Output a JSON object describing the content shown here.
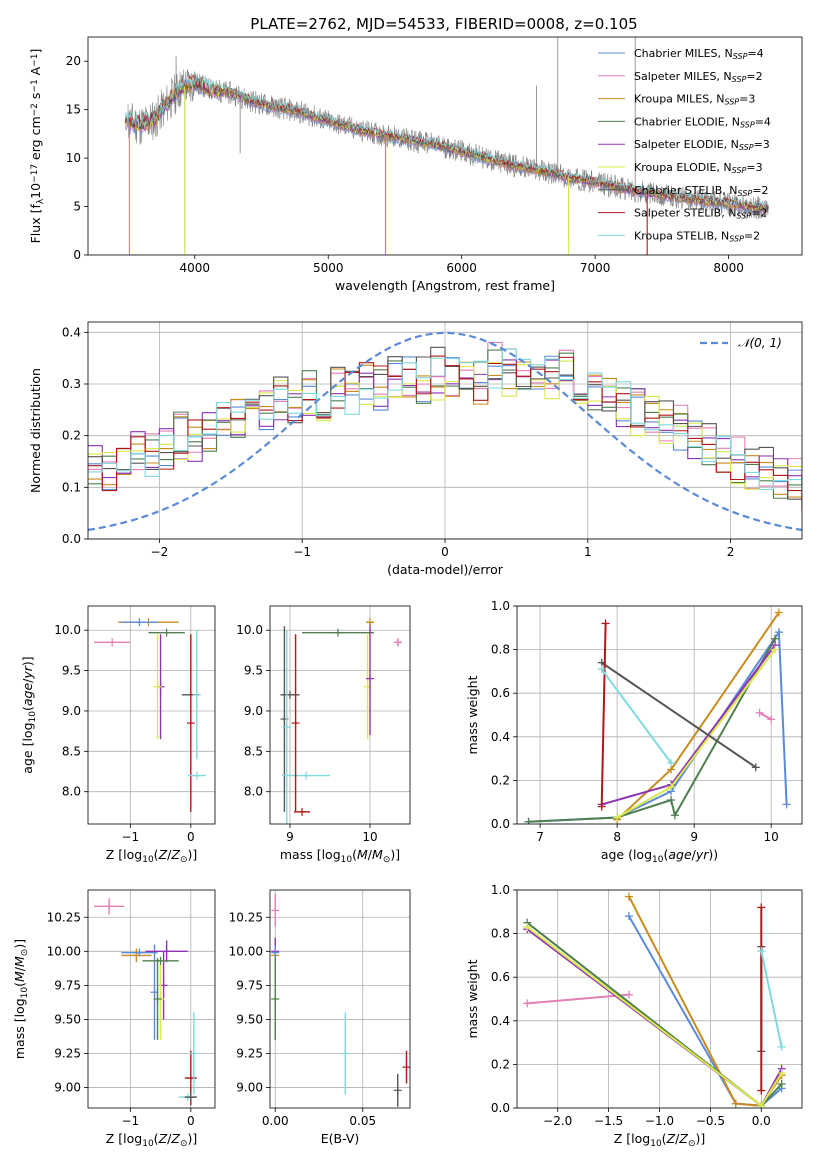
{
  "figure_title": "PLATE=2762, MJD=54533, FIBERID=0008, z=0.105",
  "colors": {
    "Chabrier MILES": "#5b8bd8",
    "Salpeter MILES": "#e57fb7",
    "Kroupa MILES": "#c98b1e",
    "Chabrier ELODIE": "#4f7f4f",
    "Salpeter ELODIE": "#8f33b5",
    "Kroupa ELODIE": "#d9e84a",
    "Chabrier STELIB": "#555555",
    "Salpeter STELIB": "#b01818",
    "Kroupa STELIB": "#7fd9de",
    "data": "#808080",
    "normal": "#5b8bd8"
  },
  "legend_entries": [
    {
      "name": "Chabrier MILES",
      "pre": "Chabrier MILES, N",
      "sub": "SSP",
      "post": "=4"
    },
    {
      "name": "Salpeter MILES",
      "pre": "Salpeter MILES, N",
      "sub": "SSP",
      "post": "=2"
    },
    {
      "name": "Kroupa MILES",
      "pre": "Kroupa MILES, N",
      "sub": "SSP",
      "post": "=3"
    },
    {
      "name": "Chabrier ELODIE",
      "pre": "Chabrier ELODIE, N",
      "sub": "SSP",
      "post": "=4"
    },
    {
      "name": "Salpeter ELODIE",
      "pre": "Salpeter ELODIE, N",
      "sub": "SSP",
      "post": "=3"
    },
    {
      "name": "Kroupa ELODIE",
      "pre": "Kroupa ELODIE, N",
      "sub": "SSP",
      "post": "=3"
    },
    {
      "name": "Chabrier STELIB",
      "pre": "Chabrier STELIB, N",
      "sub": "SSP",
      "post": "=2"
    },
    {
      "name": "Salpeter STELIB",
      "pre": "Salpeter STELIB, N",
      "sub": "SSP",
      "post": "=2"
    },
    {
      "name": "Kroupa STELIB",
      "pre": "Kroupa STELIB, N",
      "sub": "SSP",
      "post": "=2"
    }
  ],
  "chart_data": [
    {
      "id": "spectrum",
      "type": "line",
      "xlabel": "wavelength [Angstrom, rest frame]",
      "ylabel": "Flux [fλ10⁻¹⁷ erg cm⁻² s⁻¹ A⁻¹]",
      "xlim": [
        3200,
        8550
      ],
      "ylim": [
        0,
        22.5
      ],
      "xticks": [
        4000,
        5000,
        6000,
        7000,
        8000
      ],
      "yticks": [
        0,
        5,
        10,
        15,
        20
      ],
      "grid": false,
      "legend": "top-right",
      "continuum": {
        "x": [
          3500,
          3600,
          3700,
          3800,
          3900,
          4000,
          4100,
          4200,
          4300,
          4400,
          4500,
          4600,
          4700,
          4800,
          5000,
          5200,
          5400,
          5600,
          5800,
          6000,
          6200,
          6400,
          6600,
          6800,
          7000,
          7200,
          7400,
          7600,
          7800,
          8000,
          8200,
          8300
        ],
        "y": [
          13.8,
          13.4,
          14.0,
          15.8,
          17.3,
          17.8,
          17.2,
          16.9,
          16.6,
          16.0,
          15.6,
          15.3,
          15.0,
          14.7,
          13.8,
          13.0,
          12.4,
          11.9,
          11.4,
          10.7,
          9.9,
          9.2,
          8.7,
          8.0,
          7.5,
          6.9,
          6.4,
          6.0,
          5.6,
          5.3,
          4.9,
          4.8
        ]
      },
      "spikes": [
        {
          "x": 3925,
          "y": 0.2
        },
        {
          "x": 4340,
          "y": 10.5
        },
        {
          "x": 5430,
          "y": 0.1
        },
        {
          "x": 6560,
          "y": 17.5
        },
        {
          "x": 6720,
          "y": 22.5
        },
        {
          "x": 6800,
          "y": 1.5
        },
        {
          "x": 7390,
          "y": 0.0
        },
        {
          "x": 7300,
          "y": 22.5
        },
        {
          "x": 3860,
          "y": 20.5
        }
      ]
    },
    {
      "id": "residuals",
      "type": "histogram",
      "xlabel": "(data-model)/error",
      "ylabel": "Normed distribution",
      "xlim": [
        -2.5,
        2.5
      ],
      "ylim": [
        0,
        0.42
      ],
      "xticks": [
        -2,
        -1,
        0,
        1,
        2
      ],
      "yticks": [
        0.0,
        0.1,
        0.2,
        0.3,
        0.4
      ],
      "grid": true,
      "legend": "top-right",
      "bin_width": 0.1,
      "normal_label": "𝒩(0, 1)",
      "envelope": [
        0.14,
        0.13,
        0.15,
        0.17,
        0.16,
        0.18,
        0.2,
        0.19,
        0.21,
        0.22,
        0.23,
        0.24,
        0.25,
        0.27,
        0.26,
        0.28,
        0.27,
        0.29,
        0.28,
        0.3,
        0.29,
        0.3,
        0.31,
        0.3,
        0.32,
        0.31,
        0.32,
        0.31,
        0.33,
        0.32,
        0.31,
        0.32,
        0.31,
        0.32,
        0.3,
        0.29,
        0.28,
        0.26,
        0.25,
        0.24,
        0.22,
        0.21,
        0.19,
        0.18,
        0.16,
        0.15,
        0.14,
        0.13,
        0.12,
        0.11,
        0.1,
        0.09,
        0.09,
        0.08,
        0.08,
        0.07,
        0.07,
        0.06,
        0.06,
        0.05,
        0.05,
        0.04,
        0.04,
        0.04,
        0.03,
        0.03,
        0.03,
        0.03,
        0.03,
        0.02,
        0.02,
        0.02,
        0.02,
        0.02,
        0.02,
        0.02,
        0.02,
        0.02,
        0.02,
        0.02,
        0.02,
        0.02,
        0.02,
        0.02,
        0.02,
        0.02,
        0.02,
        0.02,
        0.02,
        0.02
      ],
      "series": [
        {
          "name": "Chabrier MILES",
          "scale": 1.0,
          "seed": 1
        },
        {
          "name": "Salpeter MILES",
          "scale": 1.02,
          "seed": 2
        },
        {
          "name": "Kroupa MILES",
          "scale": 0.98,
          "seed": 3
        },
        {
          "name": "Chabrier ELODIE",
          "scale": 1.01,
          "seed": 4
        },
        {
          "name": "Salpeter ELODIE",
          "scale": 0.99,
          "seed": 5
        },
        {
          "name": "Kroupa ELODIE",
          "scale": 0.97,
          "seed": 6
        },
        {
          "name": "Chabrier STELIB",
          "scale": 1.03,
          "seed": 7
        },
        {
          "name": "Salpeter STELIB",
          "scale": 1.0,
          "seed": 8
        },
        {
          "name": "Kroupa STELIB",
          "scale": 1.01,
          "seed": 9
        }
      ]
    },
    {
      "id": "age_vs_Z",
      "type": "errorbar",
      "xlabel": "Z [log10(Z/Z⊙)]",
      "ylabel": "age [log10(age/yr)]",
      "xlim": [
        -1.7,
        0.4
      ],
      "ylim": [
        7.6,
        10.3
      ],
      "xticks": [
        -1,
        0
      ],
      "yticks": [
        8.0,
        8.5,
        9.0,
        9.5,
        10.0
      ],
      "grid": true,
      "points": [
        {
          "name": "Salpeter MILES",
          "x": -1.3,
          "y": 9.85,
          "xerr": 0.3,
          "yerr": 0.0
        },
        {
          "name": "Kroupa MILES",
          "x": -0.7,
          "y": 10.1,
          "xerr": 0.5,
          "yerr": 0.0
        },
        {
          "name": "Chabrier MILES",
          "x": -0.85,
          "y": 10.1,
          "xerr": 0.3,
          "yerr": 0.0
        },
        {
          "name": "Salpeter ELODIE",
          "x": -0.5,
          "y": 9.3,
          "xerr": 0.0,
          "yerr": 0.65
        },
        {
          "name": "Kroupa ELODIE",
          "x": -0.55,
          "y": 9.3,
          "xerr": 0.0,
          "yerr": 0.65
        },
        {
          "name": "Chabrier ELODIE",
          "x": -0.4,
          "y": 9.97,
          "xerr": 0.3,
          "yerr": 0.0
        },
        {
          "name": "Chabrier STELIB",
          "x": 0.0,
          "y": 9.2,
          "xerr": 0.15,
          "yerr": 0.0
        },
        {
          "name": "Salpeter STELIB",
          "x": 0.0,
          "y": 8.85,
          "xerr": 0.0,
          "yerr": 1.1
        },
        {
          "name": "Kroupa STELIB",
          "x": 0.1,
          "y": 8.2,
          "xerr": 0.15,
          "yerr": 0.0
        },
        {
          "name": "Kroupa STELIB",
          "x": 0.1,
          "y": 9.2,
          "xerr": 0.0,
          "yerr": 0.8
        }
      ]
    },
    {
      "id": "age_vs_mass",
      "type": "errorbar",
      "xlabel": "mass [log10(M/M⊙)]",
      "ylabel": "",
      "xlim": [
        8.75,
        10.5
      ],
      "ylim": [
        7.6,
        10.3
      ],
      "xticks": [
        9,
        10
      ],
      "yticks": [
        8.0,
        8.5,
        9.0,
        9.5,
        10.0
      ],
      "grid": true,
      "points": [
        {
          "name": "Chabrier STELIB",
          "x": 9.0,
          "y": 9.2,
          "xerr": 0.12,
          "yerr": 0.0
        },
        {
          "name": "Chabrier STELIB",
          "x": 8.93,
          "y": 8.9,
          "xerr": 0.0,
          "yerr": 1.15
        },
        {
          "name": "Kroupa STELIB",
          "x": 8.96,
          "y": 8.8,
          "xerr": 0.0,
          "yerr": 1.2
        },
        {
          "name": "Kroupa STELIB",
          "x": 9.2,
          "y": 8.2,
          "xerr": 0.3,
          "yerr": 0.0
        },
        {
          "name": "Salpeter STELIB",
          "x": 9.07,
          "y": 8.85,
          "xerr": 0.0,
          "yerr": 1.1
        },
        {
          "name": "Salpeter STELIB",
          "x": 9.15,
          "y": 7.75,
          "xerr": 0.1,
          "yerr": 0.0
        },
        {
          "name": "Chabrier ELODIE",
          "x": 9.6,
          "y": 9.97,
          "xerr": 0.45,
          "yerr": 0.0
        },
        {
          "name": "Kroupa ELODIE",
          "x": 9.97,
          "y": 9.3,
          "xerr": 0.0,
          "yerr": 0.65
        },
        {
          "name": "Salpeter ELODIE",
          "x": 10.0,
          "y": 9.4,
          "xerr": 0.0,
          "yerr": 0.7
        },
        {
          "name": "Kroupa MILES",
          "x": 10.0,
          "y": 10.1,
          "xerr": 0.05,
          "yerr": 0.0
        },
        {
          "name": "Salpeter MILES",
          "x": 10.35,
          "y": 9.85,
          "xerr": 0.05,
          "yerr": 0.05
        }
      ]
    },
    {
      "id": "weight_vs_age",
      "type": "line",
      "xlabel": "age (log10(age/yr))",
      "ylabel": "mass weight",
      "xlim": [
        6.7,
        10.4
      ],
      "ylim": [
        0,
        1.0
      ],
      "xticks": [
        7,
        8,
        9,
        10
      ],
      "yticks": [
        0.0,
        0.2,
        0.4,
        0.6,
        0.8,
        1.0
      ],
      "grid": true,
      "series": [
        {
          "name": "Chabrier MILES",
          "x": [
            6.85,
            8.0,
            8.7,
            10.1,
            10.2
          ],
          "y": [
            0.01,
            0.03,
            0.15,
            0.88,
            0.09
          ]
        },
        {
          "name": "Salpeter MILES",
          "x": [
            9.85,
            10.0
          ],
          "y": [
            0.51,
            0.48
          ]
        },
        {
          "name": "Kroupa MILES",
          "x": [
            8.0,
            8.7,
            10.1
          ],
          "y": [
            0.02,
            0.25,
            0.97
          ]
        },
        {
          "name": "Chabrier ELODIE",
          "x": [
            6.85,
            8.0,
            8.7,
            8.75,
            10.05
          ],
          "y": [
            0.01,
            0.03,
            0.11,
            0.04,
            0.85
          ]
        },
        {
          "name": "Salpeter ELODIE",
          "x": [
            7.8,
            8.7,
            10.05
          ],
          "y": [
            0.09,
            0.18,
            0.82
          ]
        },
        {
          "name": "Kroupa ELODIE",
          "x": [
            8.0,
            8.7,
            10.05
          ],
          "y": [
            0.03,
            0.17,
            0.8
          ]
        },
        {
          "name": "Chabrier STELIB",
          "x": [
            7.8,
            9.8
          ],
          "y": [
            0.74,
            0.26
          ]
        },
        {
          "name": "Salpeter STELIB",
          "x": [
            7.8,
            7.85
          ],
          "y": [
            0.08,
            0.92
          ]
        },
        {
          "name": "Kroupa STELIB",
          "x": [
            7.8,
            8.7
          ],
          "y": [
            0.71,
            0.28
          ]
        }
      ]
    },
    {
      "id": "mass_vs_Z",
      "type": "errorbar",
      "xlabel": "Z [log10(Z/Z⊙)]",
      "ylabel": "mass [log10(M/M⊙)]",
      "xlim": [
        -1.7,
        0.4
      ],
      "ylim": [
        8.85,
        10.45
      ],
      "xticks": [
        -1,
        0
      ],
      "yticks": [
        9.0,
        9.25,
        9.5,
        9.75,
        10.0,
        10.25
      ],
      "grid": true,
      "points": [
        {
          "name": "Salpeter MILES",
          "x": -1.35,
          "y": 10.33,
          "xerr": 0.25,
          "yerr": 0.06
        },
        {
          "name": "Kroupa MILES",
          "x": -0.9,
          "y": 9.97,
          "xerr": 0.25,
          "yerr": 0.05
        },
        {
          "name": "Chabrier MILES",
          "x": -0.85,
          "y": 9.99,
          "xerr": 0.3,
          "yerr": 0.0
        },
        {
          "name": "Chabrier MILES",
          "x": -0.6,
          "y": 9.7,
          "xerr": 0.0,
          "yerr": 0.35
        },
        {
          "name": "Salpeter ELODIE",
          "x": -0.4,
          "y": 10.0,
          "xerr": 0.35,
          "yerr": 0.08
        },
        {
          "name": "Salpeter ELODIE",
          "x": -0.45,
          "y": 9.75,
          "xerr": 0.0,
          "yerr": 0.25
        },
        {
          "name": "Kroupa ELODIE",
          "x": -0.5,
          "y": 9.65,
          "xerr": 0.0,
          "yerr": 0.3
        },
        {
          "name": "Chabrier ELODIE",
          "x": -0.5,
          "y": 9.93,
          "xerr": 0.3,
          "yerr": 0.0
        },
        {
          "name": "Chabrier ELODIE",
          "x": -0.55,
          "y": 9.65,
          "xerr": 0.0,
          "yerr": 0.3
        },
        {
          "name": "Salpeter STELIB",
          "x": 0.0,
          "y": 9.07,
          "xerr": 0.1,
          "yerr": 0.2
        },
        {
          "name": "Kroupa STELIB",
          "x": 0.05,
          "y": 9.25,
          "xerr": 0.0,
          "yerr": 0.3
        },
        {
          "name": "Kroupa STELIB",
          "x": -0.05,
          "y": 8.93,
          "xerr": 0.15,
          "yerr": 0.0
        },
        {
          "name": "Chabrier STELIB",
          "x": 0.0,
          "y": 8.93,
          "xerr": 0.1,
          "yerr": 0.0
        }
      ]
    },
    {
      "id": "mass_vs_EBV",
      "type": "errorbar",
      "xlabel": "E(B-V)",
      "ylabel": "",
      "xlim": [
        -0.003,
        0.077
      ],
      "ylim": [
        8.85,
        10.45
      ],
      "xticks": [
        0.0,
        0.05
      ],
      "yticks": [
        9.0,
        9.25,
        9.5,
        9.75,
        10.0,
        10.25
      ],
      "grid": true,
      "points": [
        {
          "name": "Salpeter MILES",
          "x": 0.0,
          "y": 10.3,
          "xerr": 0.0,
          "yerr": 0.12
        },
        {
          "name": "Salpeter ELODIE",
          "x": 0.0,
          "y": 10.0,
          "xerr": 0.0,
          "yerr": 0.1
        },
        {
          "name": "Kroupa MILES",
          "x": 0.0,
          "y": 9.97,
          "xerr": 0.0,
          "yerr": 0.05
        },
        {
          "name": "Chabrier MILES",
          "x": 0.0,
          "y": 9.99,
          "xerr": 0.0,
          "yerr": 0.05
        },
        {
          "name": "Kroupa ELODIE",
          "x": 0.0,
          "y": 9.65,
          "xerr": 0.0,
          "yerr": 0.3
        },
        {
          "name": "Chabrier ELODIE",
          "x": 0.0,
          "y": 9.65,
          "xerr": 0.0,
          "yerr": 0.3
        },
        {
          "name": "Kroupa STELIB",
          "x": 0.04,
          "y": 9.25,
          "xerr": 0.0,
          "yerr": 0.3
        },
        {
          "name": "Chabrier STELIB",
          "x": 0.07,
          "y": 8.98,
          "xerr": 0.0,
          "yerr": 0.12
        },
        {
          "name": "Salpeter STELIB",
          "x": 0.075,
          "y": 9.15,
          "xerr": 0.0,
          "yerr": 0.12
        }
      ]
    },
    {
      "id": "weight_vs_Z",
      "type": "line",
      "xlabel": "Z [log10(Z/Z⊙)]",
      "ylabel": "mass weight",
      "xlim": [
        -2.4,
        0.4
      ],
      "ylim": [
        0,
        1.0
      ],
      "xticks": [
        -2.0,
        -1.5,
        -1.0,
        -0.5,
        0.0
      ],
      "yticks": [
        0.0,
        0.2,
        0.4,
        0.6,
        0.8,
        1.0
      ],
      "grid": true,
      "series": [
        {
          "name": "Salpeter MILES",
          "x": [
            -2.3,
            -1.3
          ],
          "y": [
            0.48,
            0.52
          ]
        },
        {
          "name": "Chabrier MILES",
          "x": [
            -1.3,
            -0.25,
            0.0,
            0.2
          ],
          "y": [
            0.88,
            0.02,
            0.01,
            0.09
          ]
        },
        {
          "name": "Kroupa MILES",
          "x": [
            -1.3,
            -0.25,
            0.0,
            0.2
          ],
          "y": [
            0.97,
            0.02,
            0.01,
            0.15
          ]
        },
        {
          "name": "Chabrier ELODIE",
          "x": [
            -2.3,
            0.0,
            0.2
          ],
          "y": [
            0.85,
            0.01,
            0.11
          ]
        },
        {
          "name": "Salpeter ELODIE",
          "x": [
            -2.3,
            0.0,
            0.2
          ],
          "y": [
            0.82,
            0.01,
            0.18
          ]
        },
        {
          "name": "Kroupa ELODIE",
          "x": [
            -2.3,
            0.0,
            0.2
          ],
          "y": [
            0.83,
            0.01,
            0.16
          ]
        },
        {
          "name": "Chabrier STELIB",
          "x": [
            0.0,
            0.0
          ],
          "y": [
            0.74,
            0.26
          ]
        },
        {
          "name": "Salpeter STELIB",
          "x": [
            0.0,
            0.0
          ],
          "y": [
            0.08,
            0.92
          ]
        },
        {
          "name": "Kroupa STELIB",
          "x": [
            0.0,
            0.2
          ],
          "y": [
            0.72,
            0.28
          ]
        }
      ]
    }
  ]
}
